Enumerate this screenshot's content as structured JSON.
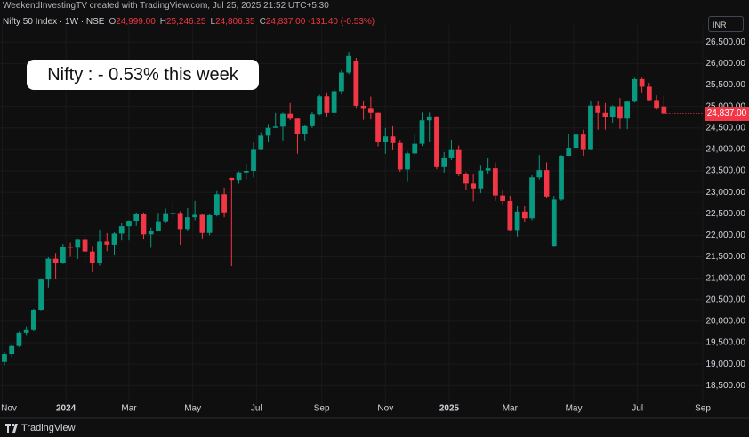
{
  "header": {
    "credit": "WeekendInvestingTV created with TradingView.com, Jul 25, 2025 21:52 UTC+5:30",
    "symbol": "Nifty 50 Index · 1W · NSE",
    "ohlc": [
      {
        "key": "O",
        "value": "24,999.00"
      },
      {
        "key": "H",
        "value": "25,246.25"
      },
      {
        "key": "L",
        "value": "24,806.35"
      },
      {
        "key": "C",
        "value": "24,837.00"
      }
    ],
    "change": "-131.40 (-0.53%)"
  },
  "currency": "INR",
  "annotation": "Nifty : - 0.53% this week",
  "brand": "TradingView",
  "chart_data": {
    "type": "candlestick",
    "up_color": "#089981",
    "down_color": "#f23645",
    "grid": true,
    "last_price_label": "24,837.00",
    "xlim": [
      -0.6,
      95.3
    ],
    "xticks": [
      {
        "value": -0.3,
        "label": "Nov"
      },
      {
        "value": 8.4,
        "label": "2024"
      },
      {
        "value": 17,
        "label": "Mar"
      },
      {
        "value": 25.7,
        "label": "May"
      },
      {
        "value": 34.4,
        "label": "Jul"
      },
      {
        "value": 43.3,
        "label": "Sep"
      },
      {
        "value": 52,
        "label": "Nov"
      },
      {
        "value": 60.7,
        "label": "2025"
      },
      {
        "value": 69,
        "label": "Mar"
      },
      {
        "value": 77.7,
        "label": "May"
      },
      {
        "value": 86.4,
        "label": "Jul"
      },
      {
        "value": 95.3,
        "label": "Sep"
      }
    ],
    "ylim": [
      18050,
      26900
    ],
    "yticks": [
      {
        "value": 18500,
        "label": "18,500.00"
      },
      {
        "value": 19000,
        "label": "19,000.00"
      },
      {
        "value": 19500,
        "label": "19,500.00"
      },
      {
        "value": 20000,
        "label": "20,000.00"
      },
      {
        "value": 20500,
        "label": "20,500.00"
      },
      {
        "value": 21000,
        "label": "21,000.00"
      },
      {
        "value": 21500,
        "label": "21,500.00"
      },
      {
        "value": 22000,
        "label": "22,000.00"
      },
      {
        "value": 22500,
        "label": "22,500.00"
      },
      {
        "value": 23000,
        "label": "23,000.00"
      },
      {
        "value": 23500,
        "label": "23,500.00"
      },
      {
        "value": 24000,
        "label": "24,000.00"
      },
      {
        "value": 24500,
        "label": "24,500.00"
      },
      {
        "value": 25000,
        "label": "25,000.00"
      },
      {
        "value": 25500,
        "label": "25,500.00"
      },
      {
        "value": 26000,
        "label": "26,000.00"
      },
      {
        "value": 26500,
        "label": "26,500.00"
      }
    ],
    "open": [
      19050,
      19230,
      19425,
      19732,
      19795,
      20268,
      20970,
      21457,
      21349,
      21731,
      21711,
      21895,
      21622,
      21353,
      21854,
      21783,
      22041,
      22213,
      22339,
      22494,
      22023,
      22097,
      22327,
      22514,
      22519,
      22147,
      22420,
      22476,
      22055,
      22466,
      22957,
      23338,
      23290,
      23465,
      23501,
      24010,
      24323,
      24502,
      24531,
      24834,
      24718,
      24367,
      24541,
      24823,
      25236,
      24852,
      25357,
      25791,
      26061,
      25015,
      24964,
      24854,
      24181,
      24304,
      24148,
      23533,
      23907,
      24131,
      24677,
      24768,
      23588,
      23813,
      24005,
      23431,
      23203,
      23092,
      23508,
      23560,
      22929,
      22796,
      22125,
      22552,
      22397,
      23350,
      23519,
      21758,
      22829,
      23852,
      24039,
      24347,
      24008,
      25020,
      24853,
      24751,
      25003,
      24719,
      25112,
      25637,
      25461,
      25149,
      24999
    ],
    "high": [
      19280,
      19450,
      19760,
      19880,
      20290,
      21000,
      21490,
      21590,
      21800,
      21830,
      21930,
      22120,
      21750,
      22130,
      22050,
      22070,
      22300,
      22350,
      22530,
      22530,
      22180,
      22520,
      22620,
      22780,
      22560,
      22630,
      22800,
      22500,
      22500,
      23030,
      23110,
      23340,
      23490,
      23670,
      24170,
      24400,
      24590,
      24850,
      24860,
      25080,
      24720,
      24560,
      24870,
      25270,
      25330,
      25430,
      25850,
      26277,
      26134,
      25140,
      25230,
      24860,
      24500,
      24540,
      24220,
      23950,
      24350,
      24860,
      24860,
      24780,
      23940,
      24230,
      24090,
      23470,
      23430,
      23640,
      23810,
      23700,
      23050,
      22920,
      22680,
      22680,
      23400,
      23870,
      23700,
      22920,
      23870,
      24360,
      24590,
      24460,
      25120,
      25120,
      25080,
      25030,
      25200,
      25140,
      25670,
      25670,
      25550,
      25260,
      25246.25
    ],
    "low": [
      18970,
      19160,
      19400,
      19680,
      19770,
      20250,
      20770,
      20980,
      21330,
      21500,
      21450,
      21290,
      21140,
      21290,
      21630,
      21530,
      21880,
      21880,
      22220,
      21910,
      21710,
      22090,
      22300,
      22400,
      21780,
      22100,
      22350,
      21930,
      22000,
      22440,
      22420,
      21281,
      23200,
      23300,
      23350,
      23990,
      24170,
      24500,
      24210,
      24680,
      23900,
      24210,
      24500,
      24800,
      24760,
      24760,
      25280,
      25750,
      24966,
      24690,
      24700,
      24070,
      23900,
      24000,
      23480,
      23260,
      23870,
      24080,
      24180,
      23540,
      23460,
      23750,
      23380,
      23050,
      22790,
      22980,
      23440,
      22800,
      22720,
      22100,
      21970,
      22320,
      22350,
      23300,
      22860,
      21744,
      22800,
      23850,
      23990,
      23850,
      24000,
      24460,
      24460,
      24620,
      24480,
      24470,
      25090,
      25330,
      25130,
      24920,
      24806.35
    ],
    "close": [
      19230,
      19425,
      19732,
      19795,
      20268,
      20970,
      21457,
      21349,
      21731,
      21711,
      21895,
      21622,
      21353,
      21854,
      21783,
      22041,
      22213,
      22339,
      22494,
      22023,
      22097,
      22327,
      22514,
      22519,
      22147,
      22420,
      22476,
      22055,
      22466,
      22957,
      22531,
      23290,
      23465,
      23501,
      24010,
      24323,
      24502,
      24531,
      24834,
      24718,
      24367,
      24541,
      24823,
      25236,
      24852,
      25357,
      25791,
      26179,
      25015,
      24964,
      24854,
      24181,
      24304,
      24148,
      23533,
      23907,
      24131,
      24677,
      24768,
      23588,
      23813,
      24005,
      23431,
      23203,
      23092,
      23508,
      23560,
      22929,
      22796,
      22125,
      22552,
      22397,
      23350,
      23519,
      22904,
      22829,
      23852,
      24039,
      24347,
      24008,
      25020,
      24853,
      24751,
      25003,
      24719,
      25112,
      25637,
      25461,
      25149,
      24968,
      24837
    ]
  }
}
